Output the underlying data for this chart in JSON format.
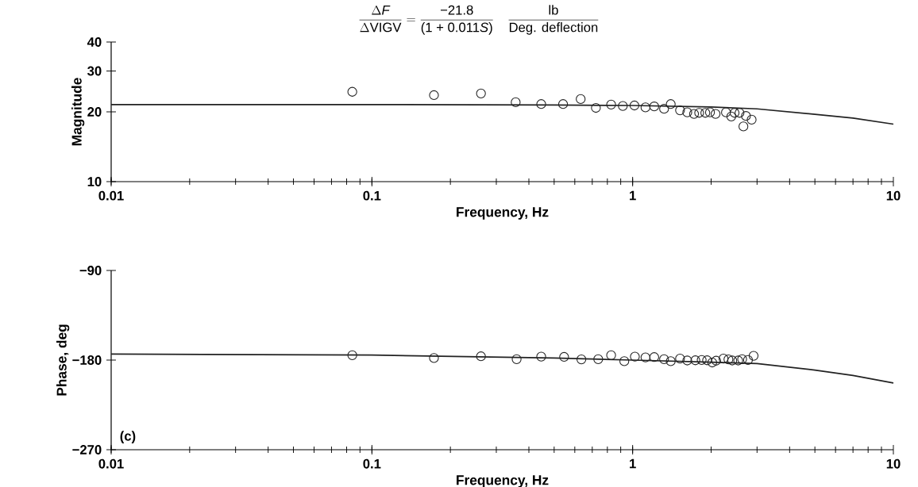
{
  "chart_data": [
    {
      "type": "scatter",
      "title": "\\dfrac{\\Delta \\textit{F}}{\\Delta\\text{VIGV}} = \\dfrac{\\text{−21.8}}{\\text{(1 + 0.011}\\textit{S}\\text{)}}\\quad\\dfrac{\\text{lb}}{\\text{Deg. deflection}}",
      "xlabel": "Frequency, Hz",
      "ylabel": "Magnitude",
      "log": "xy",
      "xlim": [
        0.01,
        10
      ],
      "ylim": [
        10,
        40
      ],
      "xticks": [
        0.01,
        0.1,
        1,
        10
      ],
      "yticks": [
        10,
        20,
        30,
        40
      ],
      "series": [
        {
          "marker": "circle",
          "color": "#222222",
          "x": [
            0.0841,
            0.173,
            0.262,
            0.356,
            0.446,
            0.541,
            0.632,
            0.723,
            0.827,
            0.917,
            1.016,
            1.12,
            1.21,
            1.32,
            1.4,
            1.52,
            1.62,
            1.72,
            1.8,
            1.9,
            1.98,
            2.08,
            2.28,
            2.39,
            2.46,
            2.57,
            2.66,
            2.72,
            2.86
          ],
          "values": [
            24.4,
            23.6,
            24.0,
            22.0,
            21.6,
            21.6,
            22.7,
            20.8,
            21.5,
            21.2,
            21.3,
            20.9,
            21.1,
            20.6,
            21.6,
            20.3,
            19.9,
            19.6,
            19.8,
            19.8,
            19.9,
            19.6,
            19.9,
            19.1,
            19.8,
            19.8,
            17.3,
            19.2,
            18.5
          ]
        },
        {
          "type": "line",
          "marker": "none",
          "color": "#222222",
          "x": [
            0.01,
            0.1,
            0.5,
            1,
            2,
            3,
            5,
            7,
            10
          ],
          "values": [
            21.5,
            21.5,
            21.4,
            21.3,
            21.0,
            20.6,
            19.5,
            18.8,
            17.7
          ]
        }
      ]
    },
    {
      "type": "scatter",
      "xlabel": "Frequency, Hz",
      "ylabel": "Phase, deg",
      "log": "x",
      "annotations": [
        "(c)"
      ],
      "xlim": [
        0.01,
        10
      ],
      "ylim": [
        -270,
        -90
      ],
      "xticks": [
        0.01,
        0.1,
        1,
        10
      ],
      "yticks": [
        {
          "value": -270,
          "label": "−270"
        },
        {
          "value": -180,
          "label": "−180"
        },
        {
          "value": -90,
          "label": "−90"
        }
      ],
      "series": [
        {
          "marker": "circle",
          "color": "#222222",
          "x": [
            0.0841,
            0.173,
            0.262,
            0.359,
            0.446,
            0.546,
            0.636,
            0.738,
            0.827,
            0.929,
            1.02,
            1.12,
            1.21,
            1.32,
            1.4,
            1.52,
            1.62,
            1.74,
            1.84,
            1.93,
            2.02,
            2.09,
            2.23,
            2.33,
            2.41,
            2.54,
            2.63,
            2.77,
            2.91
          ],
          "values": [
            -175.1,
            -177.9,
            -176.2,
            -179.1,
            -176.5,
            -176.8,
            -179.3,
            -179.1,
            -175.1,
            -181.1,
            -176.5,
            -177.3,
            -177.0,
            -179.1,
            -181.1,
            -178.5,
            -180.4,
            -180.2,
            -179.9,
            -180.2,
            -182.4,
            -180.6,
            -178.5,
            -179.3,
            -180.4,
            -180.4,
            -179.1,
            -179.9,
            -175.7
          ]
        },
        {
          "type": "line",
          "marker": "none",
          "color": "#222222",
          "x": [
            0.01,
            0.1,
            0.5,
            1,
            2,
            3,
            5,
            7,
            10
          ],
          "values": [
            -174,
            -175,
            -178,
            -180,
            -182,
            -183.5,
            -190,
            -195.5,
            -203
          ]
        }
      ]
    }
  ]
}
